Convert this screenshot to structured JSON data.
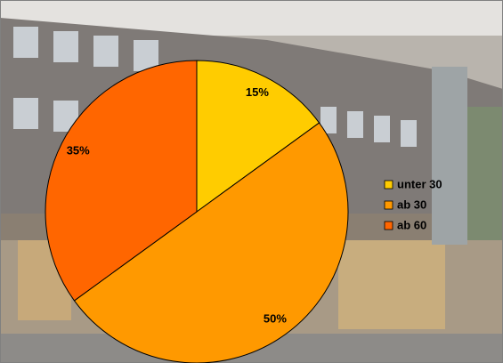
{
  "chart_data": {
    "type": "pie",
    "categories": [
      "unter 30",
      "ab 30",
      "ab 60"
    ],
    "values": [
      15,
      50,
      35
    ],
    "value_labels": [
      "15%",
      "50%",
      "35%"
    ],
    "colors": [
      "#FFCC00",
      "#FF9900",
      "#FF6600"
    ],
    "legend": "right"
  }
}
